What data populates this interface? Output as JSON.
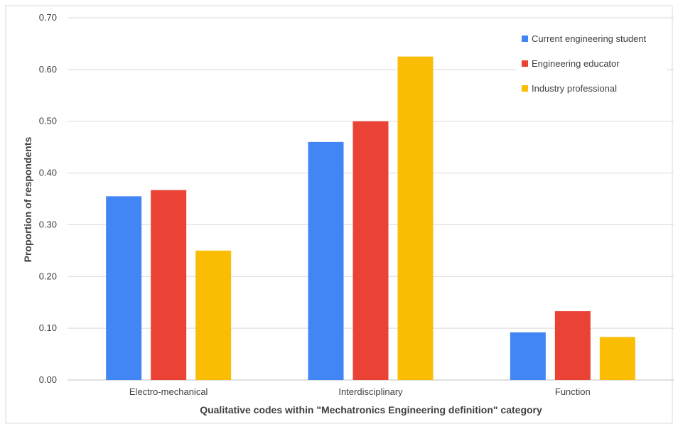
{
  "chart_data": {
    "type": "bar",
    "title": "",
    "xlabel": "Qualitative codes within \"Mechatronics Engineering definition\" category",
    "ylabel": "Proportion of respondents",
    "categories": [
      "Electro-mechanical",
      "Interdisciplinary",
      "Function"
    ],
    "series": [
      {
        "name": "Current engineering student",
        "values": [
          0.355,
          0.46,
          0.092
        ],
        "color": "#4285f4"
      },
      {
        "name": "Engineering educator",
        "values": [
          0.367,
          0.5,
          0.133
        ],
        "color": "#ea4335"
      },
      {
        "name": "Industry professional",
        "values": [
          0.25,
          0.625,
          0.083
        ],
        "color": "#fbbc04"
      }
    ],
    "ylim": [
      0,
      0.7
    ],
    "yticks": [
      "0.00",
      "0.10",
      "0.20",
      "0.30",
      "0.40",
      "0.50",
      "0.60",
      "0.70"
    ],
    "grid": true,
    "legend_position": "top-right"
  }
}
